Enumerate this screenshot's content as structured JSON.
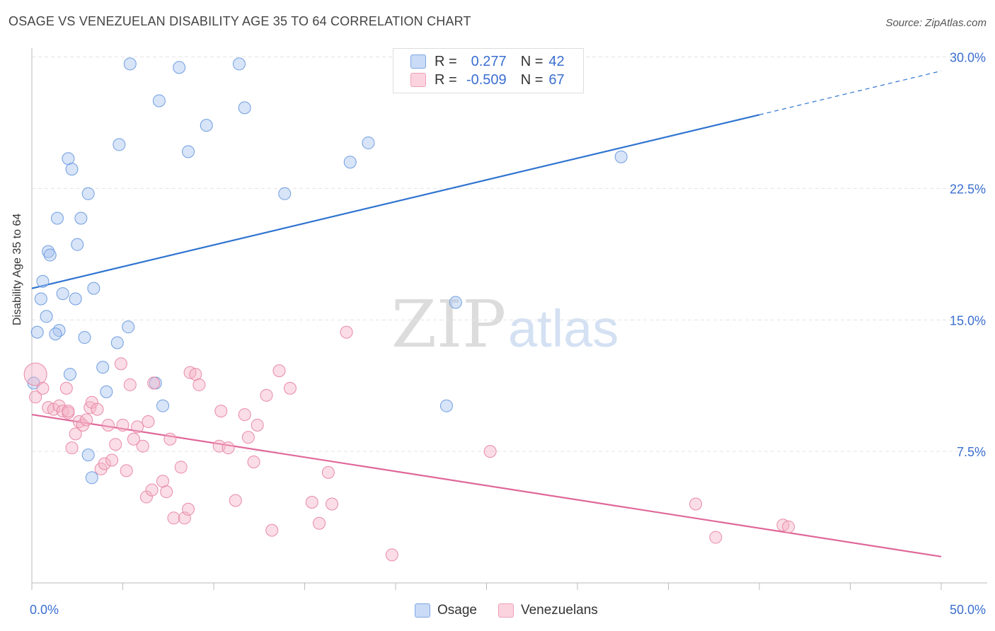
{
  "header": {
    "title": "OSAGE VS VENEZUELAN DISABILITY AGE 35 TO 64 CORRELATION CHART",
    "source": "Source: ZipAtlas.com"
  },
  "watermark": {
    "part1": "ZIP",
    "part2": "atlas"
  },
  "legend": {
    "rows": [
      {
        "r_label": "R =",
        "r_value": "0.277",
        "n_label": "N =",
        "n_value": "42",
        "color": "#a9c4ef"
      },
      {
        "r_label": "R =",
        "r_value": "-0.509",
        "n_label": "N =",
        "n_value": "67",
        "color": "#f5b3c7"
      }
    ]
  },
  "bottom_legend": {
    "items": [
      {
        "label": "Osage",
        "color": "#a9c4ef"
      },
      {
        "label": "Venezuelans",
        "color": "#f5b3c7"
      }
    ]
  },
  "chart_data": {
    "type": "scatter",
    "title": "OSAGE VS VENEZUELAN DISABILITY AGE 35 TO 64 CORRELATION CHART",
    "xlabel": "",
    "ylabel": "Disability Age 35 to 64",
    "xlim": [
      0,
      50
    ],
    "ylim": [
      0,
      31
    ],
    "x_tick_labels": [
      "0.0%",
      "50.0%"
    ],
    "y_ticks": [
      7.5,
      15.0,
      22.5,
      30.0
    ],
    "y_tick_labels": [
      "7.5%",
      "15.0%",
      "22.5%",
      "30.0%"
    ],
    "grid": "horizontal dashed",
    "series": [
      {
        "name": "Osage",
        "color": "#a9c4ef",
        "stroke": "#6f9ee0",
        "trend": {
          "x0": 0,
          "y0": 16.8,
          "x1": 40,
          "y1": 26.7,
          "x_dash_end": 50,
          "y_dash_end": 29.2,
          "color": "#2f74d0"
        },
        "points": [
          [
            5.4,
            29.6
          ],
          [
            8.1,
            29.4
          ],
          [
            11.4,
            29.6
          ],
          [
            7.0,
            27.5
          ],
          [
            11.7,
            27.1
          ],
          [
            9.6,
            26.1
          ],
          [
            4.8,
            25.0
          ],
          [
            8.6,
            24.6
          ],
          [
            18.5,
            25.1
          ],
          [
            2.0,
            24.2
          ],
          [
            2.2,
            23.6
          ],
          [
            17.5,
            24.0
          ],
          [
            32.4,
            24.3
          ],
          [
            3.1,
            22.2
          ],
          [
            13.9,
            22.2
          ],
          [
            1.4,
            20.8
          ],
          [
            2.7,
            20.8
          ],
          [
            2.5,
            19.3
          ],
          [
            0.9,
            18.9
          ],
          [
            1.0,
            18.7
          ],
          [
            0.6,
            17.2
          ],
          [
            3.4,
            16.8
          ],
          [
            1.7,
            16.5
          ],
          [
            0.5,
            16.2
          ],
          [
            2.4,
            16.2
          ],
          [
            23.3,
            16.0
          ],
          [
            0.8,
            15.2
          ],
          [
            5.3,
            14.6
          ],
          [
            0.3,
            14.3
          ],
          [
            1.5,
            14.4
          ],
          [
            1.3,
            14.2
          ],
          [
            2.9,
            14.0
          ],
          [
            4.7,
            13.7
          ],
          [
            3.9,
            12.3
          ],
          [
            2.1,
            11.9
          ],
          [
            6.8,
            11.4
          ],
          [
            0.1,
            11.4
          ],
          [
            4.1,
            10.9
          ],
          [
            7.2,
            10.1
          ],
          [
            22.8,
            10.1
          ],
          [
            3.1,
            7.3
          ],
          [
            3.3,
            6.0
          ]
        ]
      },
      {
        "name": "Venezuelans",
        "color": "#f5b3c7",
        "stroke": "#e98aa8",
        "trend": {
          "x0": 0,
          "y0": 9.6,
          "x1": 50,
          "y1": 1.5,
          "color": "#e0679a"
        },
        "points": [
          [
            0.2,
            11.9
          ],
          [
            0.2,
            10.6
          ],
          [
            0.6,
            11.1
          ],
          [
            0.9,
            10.0
          ],
          [
            1.2,
            9.9
          ],
          [
            1.5,
            10.1
          ],
          [
            1.7,
            9.8
          ],
          [
            1.9,
            11.1
          ],
          [
            2.0,
            9.7
          ],
          [
            2.0,
            9.8
          ],
          [
            2.2,
            7.7
          ],
          [
            2.4,
            8.5
          ],
          [
            2.6,
            9.2
          ],
          [
            2.8,
            9.0
          ],
          [
            3.0,
            9.3
          ],
          [
            3.2,
            10.0
          ],
          [
            3.3,
            10.3
          ],
          [
            3.6,
            9.9
          ],
          [
            3.8,
            6.5
          ],
          [
            4.0,
            6.8
          ],
          [
            4.2,
            9.0
          ],
          [
            4.4,
            7.0
          ],
          [
            4.6,
            7.9
          ],
          [
            4.9,
            12.5
          ],
          [
            5.0,
            9.0
          ],
          [
            5.2,
            6.4
          ],
          [
            5.4,
            11.3
          ],
          [
            5.6,
            8.2
          ],
          [
            5.8,
            8.9
          ],
          [
            6.1,
            7.8
          ],
          [
            6.3,
            4.9
          ],
          [
            6.4,
            9.2
          ],
          [
            6.6,
            5.3
          ],
          [
            6.7,
            11.4
          ],
          [
            7.2,
            5.8
          ],
          [
            7.4,
            5.2
          ],
          [
            7.6,
            8.2
          ],
          [
            7.8,
            3.7
          ],
          [
            8.2,
            6.6
          ],
          [
            8.4,
            3.7
          ],
          [
            8.6,
            4.2
          ],
          [
            8.7,
            12.0
          ],
          [
            9.0,
            11.9
          ],
          [
            9.2,
            11.3
          ],
          [
            10.3,
            7.8
          ],
          [
            10.4,
            9.8
          ],
          [
            10.8,
            7.7
          ],
          [
            11.2,
            4.7
          ],
          [
            11.7,
            9.6
          ],
          [
            11.9,
            8.3
          ],
          [
            12.2,
            6.9
          ],
          [
            12.4,
            9.0
          ],
          [
            12.9,
            10.7
          ],
          [
            13.2,
            3.0
          ],
          [
            13.6,
            12.1
          ],
          [
            14.2,
            11.1
          ],
          [
            15.4,
            4.6
          ],
          [
            15.8,
            3.4
          ],
          [
            16.3,
            6.3
          ],
          [
            16.5,
            4.5
          ],
          [
            17.3,
            14.3
          ],
          [
            19.8,
            1.6
          ],
          [
            25.2,
            7.5
          ],
          [
            36.5,
            4.5
          ],
          [
            37.6,
            2.6
          ],
          [
            41.3,
            3.3
          ],
          [
            41.6,
            3.2
          ]
        ]
      }
    ]
  }
}
